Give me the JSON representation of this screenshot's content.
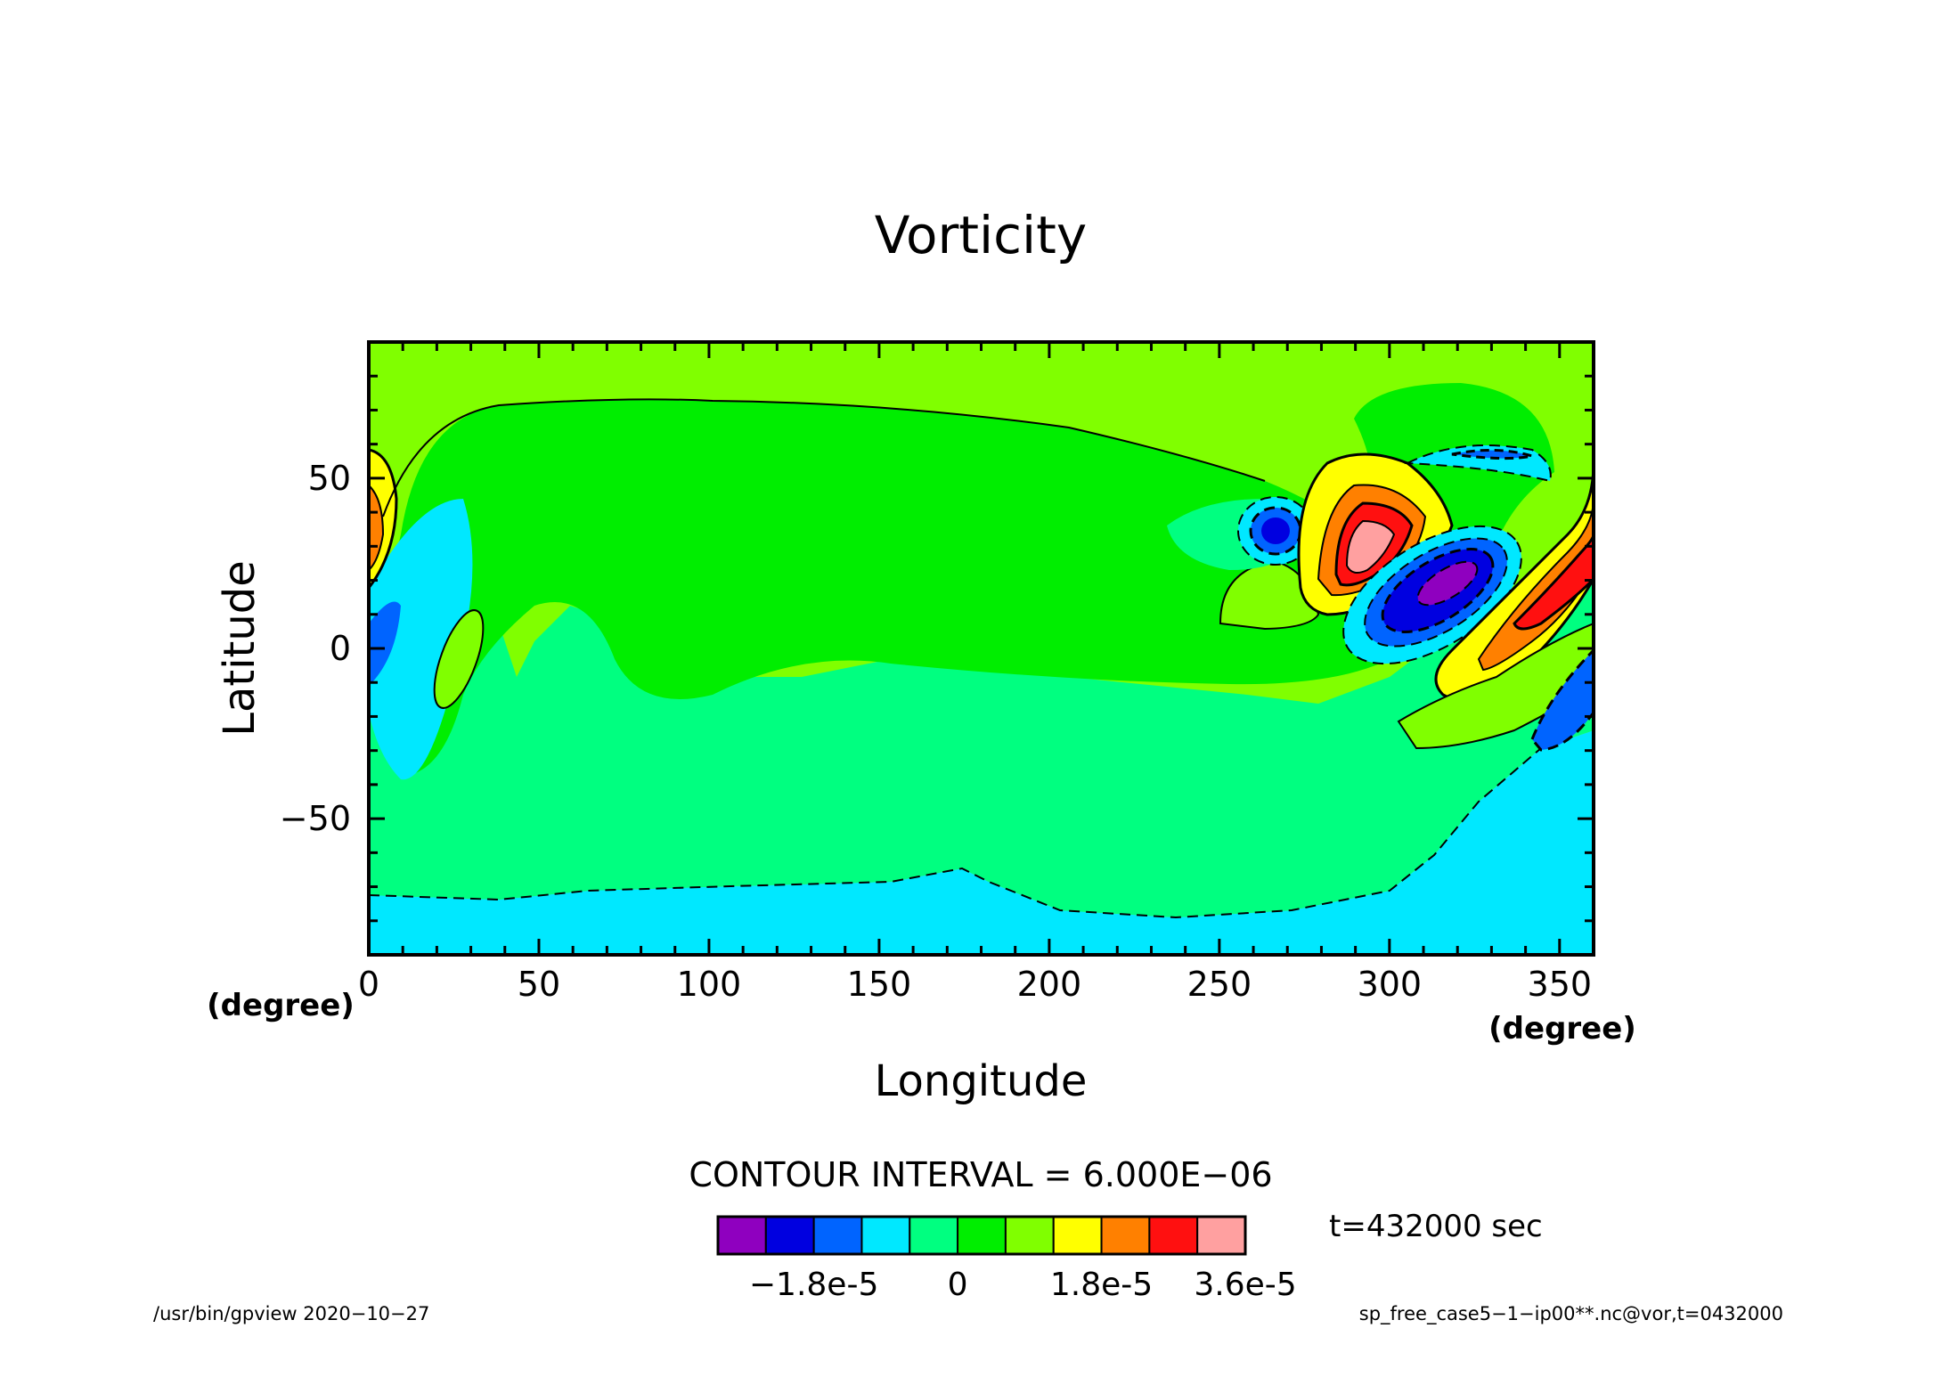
{
  "chart_data": {
    "type": "heatmap",
    "title": "Vorticity",
    "xlabel": "Longitude",
    "ylabel": "Latitude",
    "x_unit": "(degree)",
    "y_unit": "(degree)",
    "xlim": [
      0,
      360
    ],
    "ylim": [
      -90,
      90
    ],
    "x_ticks": [
      0,
      50,
      100,
      150,
      200,
      250,
      300,
      350
    ],
    "y_ticks": [
      -50,
      0,
      50
    ],
    "x_tick_labels": [
      "0",
      "50",
      "100",
      "150",
      "200",
      "250",
      "300",
      "350"
    ],
    "y_tick_labels": [
      "−50",
      "0",
      "50"
    ],
    "contour_interval_text": "CONTOUR INTERVAL = 6.000E−06",
    "contour_interval": 6e-06,
    "time_label": "t=432000 sec",
    "colorbar": {
      "levels": [
        -3e-05,
        -2.4e-05,
        -1.8e-05,
        -1.2e-05,
        -6e-06,
        0,
        6e-06,
        1.2e-05,
        1.8e-05,
        2.4e-05,
        3e-05,
        3.6e-05
      ],
      "colors": [
        "#8f00bf",
        "#0000e0",
        "#0064ff",
        "#00e8ff",
        "#00ff80",
        "#00ee00",
        "#80ff00",
        "#ffff00",
        "#ff8000",
        "#ff1010",
        "#ffa0a0"
      ],
      "tick_labels": [
        {
          "value": -1.8e-05,
          "label": "−1.8e-5"
        },
        {
          "value": 0,
          "label": "0"
        },
        {
          "value": 1.8e-05,
          "label": "1.8e-5"
        },
        {
          "value": 3.6e-05,
          "label": "3.6e-5"
        }
      ]
    },
    "background_value_color": "#80ff00",
    "features": [
      {
        "type": "region",
        "value": 0,
        "color": "#00ee00",
        "note": "broad mid-latitude band"
      },
      {
        "type": "region",
        "value": -6e-06,
        "color": "#00ff80",
        "note": "southern band"
      },
      {
        "type": "region",
        "value": -1.2e-05,
        "color": "#00e8ff",
        "note": "south polar cap"
      },
      {
        "type": "extremum",
        "sign": "negative",
        "lon": 265,
        "lat": 34,
        "color": "#0000e0"
      },
      {
        "type": "extremum",
        "sign": "positive",
        "lon": 293,
        "lat": 28,
        "color": "#ffa0a0"
      },
      {
        "type": "extremum",
        "sign": "negative",
        "lon": 320,
        "lat": 20,
        "color": "#8f00bf"
      },
      {
        "type": "extremum",
        "sign": "positive",
        "lon": 345,
        "lat": 20,
        "color": "#ff1010"
      },
      {
        "type": "extremum",
        "sign": "negative",
        "lon": 350,
        "lat": -25,
        "color": "#0064ff"
      },
      {
        "type": "extremum",
        "sign": "positive",
        "lon": 3,
        "lat": 40,
        "color": "#ff8000"
      }
    ]
  },
  "footer": {
    "left": "/usr/bin/gpview   2020−10−27",
    "right": "sp_free_case5−1−ip00**.nc@vor,t=0432000"
  }
}
